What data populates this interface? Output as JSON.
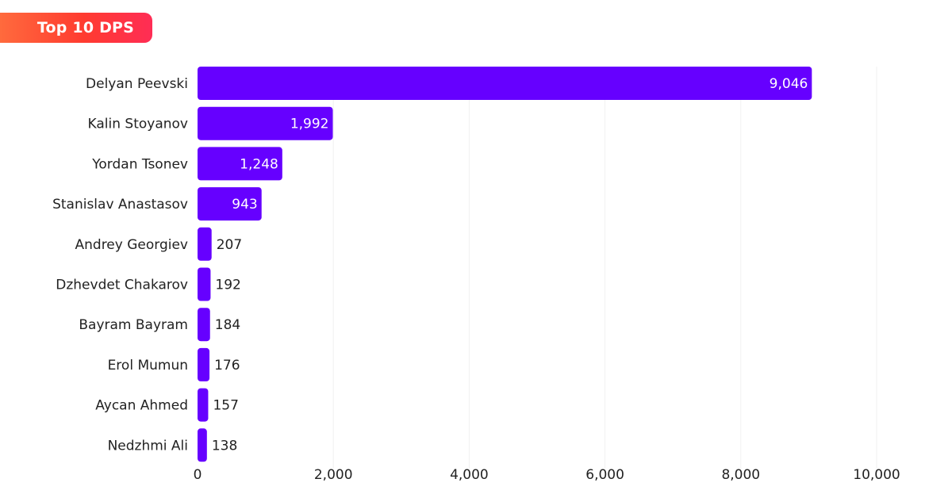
{
  "title": "Top 10 DPS",
  "accent_color": "#6600ff",
  "badge_color": "#ff3b30",
  "chart_data": {
    "type": "bar",
    "orientation": "horizontal",
    "title": "Top 10 DPS",
    "categories": [
      "Delyan Peevski",
      "Kalin Stoyanov",
      "Yordan Tsonev",
      "Stanislav Anastasov",
      "Andrey Georgiev",
      "Dzhevdet Chakarov",
      "Bayram Bayram",
      "Erol Mumun",
      "Aycan Ahmed",
      "Nedzhmi Ali"
    ],
    "values": [
      9046,
      1992,
      1248,
      943,
      207,
      192,
      184,
      176,
      157,
      138
    ],
    "value_labels": [
      "9,046",
      "1,992",
      "1,248",
      "943",
      "207",
      "192",
      "184",
      "176",
      "157",
      "138"
    ],
    "xlim": [
      0,
      10000
    ],
    "xticks": [
      0,
      2000,
      4000,
      6000,
      8000,
      10000
    ],
    "xtick_labels": [
      "0",
      "2,000",
      "4,000",
      "6,000",
      "8,000",
      "10,000"
    ],
    "xlabel": "",
    "ylabel": "",
    "grid": "vertical",
    "legend": "none"
  }
}
